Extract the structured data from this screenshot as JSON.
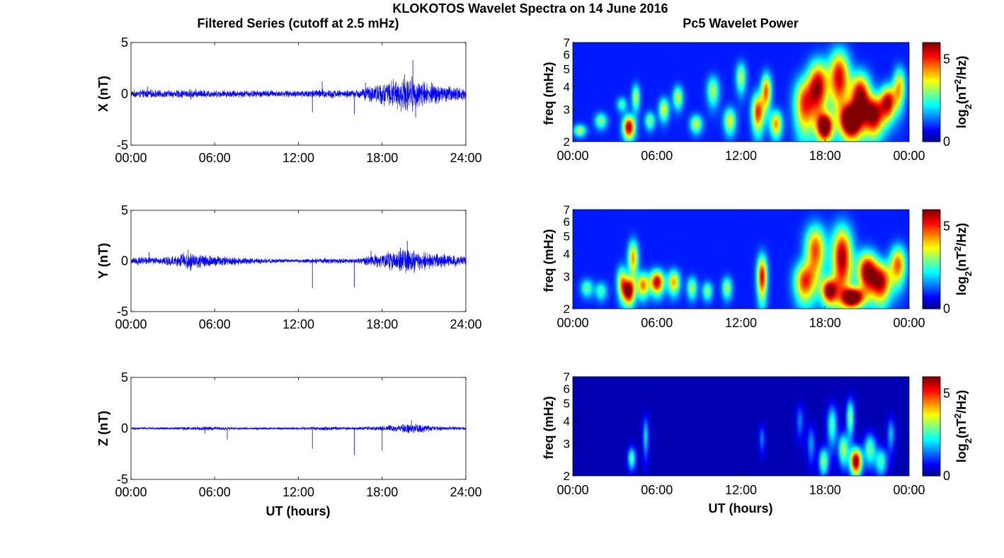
{
  "figure": {
    "title": "KLOKOTOS Wavelet Spectra on 14 June 2016",
    "left_column_title": "Filtered Series (cutoff at 2.5 mHz)",
    "right_column_title": "Pc5 Wavelet Power",
    "bottom_xlabel": "UT (hours)"
  },
  "chart_data": [
    {
      "type": "line",
      "component": "X",
      "ylabel": "X (nT)",
      "xlabel": "UT (hours)",
      "xlim": [
        0,
        24
      ],
      "ylim": [
        -5,
        5
      ],
      "xticks": [
        "00:00",
        "06:00",
        "12:00",
        "18:00",
        "24:00"
      ],
      "yticks": [
        "5",
        "0",
        "-5"
      ],
      "line_color": "#0000ff",
      "envelope": {
        "x": [
          0,
          1,
          2,
          3,
          4,
          5,
          6,
          7,
          8,
          9,
          10,
          11,
          12,
          13,
          14,
          15,
          16,
          17,
          18,
          19,
          20,
          21,
          22,
          23,
          24
        ],
        "amplitude": [
          0.25,
          0.35,
          0.3,
          0.3,
          0.35,
          0.35,
          0.3,
          0.3,
          0.3,
          0.3,
          0.3,
          0.25,
          0.3,
          0.35,
          0.4,
          0.3,
          0.3,
          0.6,
          0.9,
          1.2,
          1.4,
          1.0,
          0.8,
          0.6,
          0.5
        ]
      },
      "spikes": [
        {
          "x": 1.2,
          "y": 0.7
        },
        {
          "x": 4.3,
          "y": -0.6
        },
        {
          "x": 13.0,
          "y": -1.8
        },
        {
          "x": 13.7,
          "y": 1.2
        },
        {
          "x": 16.0,
          "y": -2.0
        },
        {
          "x": 16.8,
          "y": 1.1
        },
        {
          "x": 19.6,
          "y": 1.9
        },
        {
          "x": 20.2,
          "y": 3.3
        },
        {
          "x": 20.4,
          "y": -2.3
        }
      ]
    },
    {
      "type": "line",
      "component": "Y",
      "ylabel": "Y (nT)",
      "xlabel": "UT (hours)",
      "xlim": [
        0,
        24
      ],
      "ylim": [
        -5,
        5
      ],
      "xticks": [
        "00:00",
        "06:00",
        "12:00",
        "18:00",
        "24:00"
      ],
      "yticks": [
        "5",
        "0",
        "-5"
      ],
      "line_color": "#0000ff",
      "envelope": {
        "x": [
          0,
          1,
          2,
          3,
          4,
          5,
          6,
          7,
          8,
          9,
          10,
          11,
          12,
          13,
          14,
          15,
          16,
          17,
          18,
          19,
          20,
          21,
          22,
          23,
          24
        ],
        "amplitude": [
          0.3,
          0.35,
          0.3,
          0.4,
          0.7,
          0.6,
          0.45,
          0.35,
          0.3,
          0.25,
          0.2,
          0.15,
          0.15,
          0.2,
          0.25,
          0.2,
          0.2,
          0.4,
          0.6,
          0.9,
          1.0,
          0.7,
          0.6,
          0.5,
          0.4
        ]
      },
      "spikes": [
        {
          "x": 1.3,
          "y": 0.9
        },
        {
          "x": 4.1,
          "y": 1.1
        },
        {
          "x": 4.3,
          "y": -1.0
        },
        {
          "x": 13.0,
          "y": -2.7
        },
        {
          "x": 16.0,
          "y": -2.6
        },
        {
          "x": 17.2,
          "y": 1.0
        },
        {
          "x": 19.3,
          "y": 1.3
        },
        {
          "x": 19.8,
          "y": 2.0
        },
        {
          "x": 20.3,
          "y": -1.2
        }
      ]
    },
    {
      "type": "line",
      "component": "Z",
      "ylabel": "Z (nT)",
      "xlabel": "UT (hours)",
      "xlim": [
        0,
        24
      ],
      "ylim": [
        -5,
        5
      ],
      "xticks": [
        "00:00",
        "06:00",
        "12:00",
        "18:00",
        "24:00"
      ],
      "yticks": [
        "5",
        "0",
        "-5"
      ],
      "line_color": "#0000ff",
      "envelope": {
        "x": [
          0,
          1,
          2,
          3,
          4,
          5,
          6,
          7,
          8,
          9,
          10,
          11,
          12,
          13,
          14,
          15,
          16,
          17,
          18,
          19,
          20,
          21,
          22,
          23,
          24
        ],
        "amplitude": [
          0.1,
          0.1,
          0.1,
          0.1,
          0.15,
          0.15,
          0.15,
          0.12,
          0.1,
          0.1,
          0.1,
          0.1,
          0.1,
          0.15,
          0.15,
          0.12,
          0.12,
          0.15,
          0.2,
          0.3,
          0.4,
          0.3,
          0.2,
          0.15,
          0.12
        ]
      },
      "spikes": [
        {
          "x": 5.3,
          "y": -0.5
        },
        {
          "x": 6.9,
          "y": -1.1
        },
        {
          "x": 13.0,
          "y": -2.0
        },
        {
          "x": 16.0,
          "y": -2.6
        },
        {
          "x": 18.0,
          "y": -2.2
        },
        {
          "x": 20.1,
          "y": 0.8
        }
      ]
    },
    {
      "type": "heatmap",
      "component": "X",
      "ylabel": "freq (mHz)",
      "xlabel": "UT (hours)",
      "xlim": [
        0,
        24
      ],
      "ylim": [
        2,
        7
      ],
      "yscale": "log",
      "xticks": [
        "00:00",
        "06:00",
        "12:00",
        "18:00",
        "00:00"
      ],
      "yticks": [
        "2",
        "3",
        "4",
        "5",
        "6",
        "7"
      ],
      "colormap": "jet",
      "colorbar": {
        "label_main": "log",
        "label_sub": "2",
        "label_paren": "(nT",
        "label_sup": "2",
        "label_end": "/Hz)",
        "ticks": [
          "0",
          "5"
        ],
        "range": [
          0,
          6
        ]
      },
      "background": 0.15,
      "blobs": [
        {
          "t": 0.5,
          "f": 2.3,
          "st": 0.3,
          "sf": 0.12,
          "v": 2.5
        },
        {
          "t": 2.0,
          "f": 2.6,
          "st": 0.3,
          "sf": 0.18,
          "v": 2.2
        },
        {
          "t": 3.5,
          "f": 3.2,
          "st": 0.25,
          "sf": 0.2,
          "v": 1.8
        },
        {
          "t": 4.0,
          "f": 2.4,
          "st": 0.3,
          "sf": 0.25,
          "v": 5.0
        },
        {
          "t": 4.5,
          "f": 3.5,
          "st": 0.2,
          "sf": 0.4,
          "v": 2.5
        },
        {
          "t": 5.5,
          "f": 2.6,
          "st": 0.25,
          "sf": 0.2,
          "v": 2.2
        },
        {
          "t": 6.5,
          "f": 3.0,
          "st": 0.25,
          "sf": 0.3,
          "v": 2.8
        },
        {
          "t": 7.5,
          "f": 3.5,
          "st": 0.25,
          "sf": 0.35,
          "v": 2.6
        },
        {
          "t": 8.8,
          "f": 2.5,
          "st": 0.3,
          "sf": 0.2,
          "v": 2.6
        },
        {
          "t": 10.0,
          "f": 3.8,
          "st": 0.3,
          "sf": 0.5,
          "v": 2.4
        },
        {
          "t": 11.2,
          "f": 2.6,
          "st": 0.3,
          "sf": 0.3,
          "v": 2.8
        },
        {
          "t": 12.0,
          "f": 4.5,
          "st": 0.25,
          "sf": 0.6,
          "v": 2.5
        },
        {
          "t": 13.2,
          "f": 2.9,
          "st": 0.3,
          "sf": 0.5,
          "v": 4.2
        },
        {
          "t": 13.8,
          "f": 3.8,
          "st": 0.25,
          "sf": 0.6,
          "v": 3.8
        },
        {
          "t": 14.5,
          "f": 2.5,
          "st": 0.3,
          "sf": 0.3,
          "v": 3.5
        },
        {
          "t": 16.5,
          "f": 3.2,
          "st": 0.5,
          "sf": 0.8,
          "v": 3.8
        },
        {
          "t": 17.5,
          "f": 4.0,
          "st": 0.5,
          "sf": 1.0,
          "v": 4.8
        },
        {
          "t": 18.0,
          "f": 2.4,
          "st": 0.4,
          "sf": 0.3,
          "v": 5.4
        },
        {
          "t": 19.0,
          "f": 4.5,
          "st": 0.5,
          "sf": 1.2,
          "v": 4.6
        },
        {
          "t": 19.8,
          "f": 2.6,
          "st": 0.5,
          "sf": 0.4,
          "v": 6.0
        },
        {
          "t": 20.5,
          "f": 3.5,
          "st": 0.5,
          "sf": 0.8,
          "v": 5.2
        },
        {
          "t": 21.5,
          "f": 2.8,
          "st": 0.5,
          "sf": 0.5,
          "v": 5.0
        },
        {
          "t": 22.5,
          "f": 3.3,
          "st": 0.4,
          "sf": 0.5,
          "v": 4.6
        },
        {
          "t": 23.3,
          "f": 4.0,
          "st": 0.3,
          "sf": 0.7,
          "v": 3.2
        }
      ]
    },
    {
      "type": "heatmap",
      "component": "Y",
      "ylabel": "freq (mHz)",
      "xlabel": "UT (hours)",
      "xlim": [
        0,
        24
      ],
      "ylim": [
        2,
        7
      ],
      "yscale": "log",
      "xticks": [
        "00:00",
        "06:00",
        "12:00",
        "18:00",
        "00:00"
      ],
      "yticks": [
        "2",
        "3",
        "4",
        "5",
        "6",
        "7"
      ],
      "colormap": "jet",
      "colorbar": {
        "label_main": "log",
        "label_sub": "2",
        "label_paren": "(nT",
        "label_sup": "2",
        "label_end": "/Hz)",
        "ticks": [
          "0",
          "5"
        ],
        "range": [
          0,
          6
        ]
      },
      "background": 0.15,
      "blobs": [
        {
          "t": 1.0,
          "f": 2.6,
          "st": 0.3,
          "sf": 0.2,
          "v": 2.0
        },
        {
          "t": 2.0,
          "f": 2.5,
          "st": 0.3,
          "sf": 0.2,
          "v": 1.8
        },
        {
          "t": 3.5,
          "f": 2.8,
          "st": 0.25,
          "sf": 0.4,
          "v": 3.0
        },
        {
          "t": 4.0,
          "f": 2.5,
          "st": 0.3,
          "sf": 0.3,
          "v": 5.2
        },
        {
          "t": 4.3,
          "f": 3.8,
          "st": 0.25,
          "sf": 0.6,
          "v": 3.5
        },
        {
          "t": 5.0,
          "f": 2.7,
          "st": 0.3,
          "sf": 0.3,
          "v": 3.6
        },
        {
          "t": 6.0,
          "f": 2.8,
          "st": 0.35,
          "sf": 0.3,
          "v": 4.8
        },
        {
          "t": 7.2,
          "f": 2.8,
          "st": 0.3,
          "sf": 0.3,
          "v": 3.4
        },
        {
          "t": 8.5,
          "f": 2.6,
          "st": 0.25,
          "sf": 0.25,
          "v": 2.4
        },
        {
          "t": 9.6,
          "f": 2.5,
          "st": 0.25,
          "sf": 0.2,
          "v": 2.2
        },
        {
          "t": 11.0,
          "f": 2.6,
          "st": 0.25,
          "sf": 0.25,
          "v": 2.4
        },
        {
          "t": 13.5,
          "f": 3.0,
          "st": 0.25,
          "sf": 0.6,
          "v": 4.5
        },
        {
          "t": 16.5,
          "f": 2.8,
          "st": 0.5,
          "sf": 0.5,
          "v": 3.8
        },
        {
          "t": 17.3,
          "f": 4.2,
          "st": 0.5,
          "sf": 1.0,
          "v": 4.0
        },
        {
          "t": 18.3,
          "f": 2.5,
          "st": 0.4,
          "sf": 0.3,
          "v": 4.8
        },
        {
          "t": 19.2,
          "f": 3.8,
          "st": 0.5,
          "sf": 1.2,
          "v": 5.0
        },
        {
          "t": 20.0,
          "f": 2.3,
          "st": 0.5,
          "sf": 0.2,
          "v": 6.0
        },
        {
          "t": 21.0,
          "f": 3.2,
          "st": 0.5,
          "sf": 0.6,
          "v": 5.0
        },
        {
          "t": 22.0,
          "f": 2.8,
          "st": 0.5,
          "sf": 0.5,
          "v": 4.6
        },
        {
          "t": 23.2,
          "f": 3.5,
          "st": 0.4,
          "sf": 0.6,
          "v": 3.8
        }
      ]
    },
    {
      "type": "heatmap",
      "component": "Z",
      "ylabel": "freq (mHz)",
      "xlabel": "UT (hours)",
      "xlim": [
        0,
        24
      ],
      "ylim": [
        2,
        7
      ],
      "yscale": "log",
      "xticks": [
        "00:00",
        "06:00",
        "12:00",
        "18:00",
        "00:00"
      ],
      "yticks": [
        "2",
        "3",
        "4",
        "5",
        "6",
        "7"
      ],
      "colormap": "jet",
      "colorbar": {
        "label_main": "log",
        "label_sub": "2",
        "label_paren": "(nT",
        "label_sup": "2",
        "label_end": "/Hz)",
        "ticks": [
          "0",
          "5"
        ],
        "range": [
          0,
          6
        ]
      },
      "background": 0.05,
      "blobs": [
        {
          "t": 4.2,
          "f": 2.5,
          "st": 0.2,
          "sf": 0.25,
          "v": 2.5
        },
        {
          "t": 5.2,
          "f": 3.3,
          "st": 0.15,
          "sf": 0.6,
          "v": 1.8
        },
        {
          "t": 13.5,
          "f": 3.2,
          "st": 0.15,
          "sf": 0.4,
          "v": 1.2
        },
        {
          "t": 16.2,
          "f": 4.0,
          "st": 0.2,
          "sf": 0.6,
          "v": 1.2
        },
        {
          "t": 17.0,
          "f": 3.0,
          "st": 0.2,
          "sf": 0.5,
          "v": 1.4
        },
        {
          "t": 17.9,
          "f": 2.4,
          "st": 0.25,
          "sf": 0.3,
          "v": 2.8
        },
        {
          "t": 18.5,
          "f": 3.8,
          "st": 0.25,
          "sf": 0.7,
          "v": 2.4
        },
        {
          "t": 19.3,
          "f": 2.8,
          "st": 0.25,
          "sf": 0.4,
          "v": 3.0
        },
        {
          "t": 19.8,
          "f": 4.2,
          "st": 0.2,
          "sf": 0.7,
          "v": 2.8
        },
        {
          "t": 20.2,
          "f": 2.4,
          "st": 0.3,
          "sf": 0.3,
          "v": 5.8
        },
        {
          "t": 21.2,
          "f": 2.8,
          "st": 0.3,
          "sf": 0.4,
          "v": 2.6
        },
        {
          "t": 22.0,
          "f": 2.4,
          "st": 0.3,
          "sf": 0.3,
          "v": 2.4
        },
        {
          "t": 22.7,
          "f": 3.4,
          "st": 0.2,
          "sf": 0.5,
          "v": 1.6
        }
      ]
    }
  ]
}
